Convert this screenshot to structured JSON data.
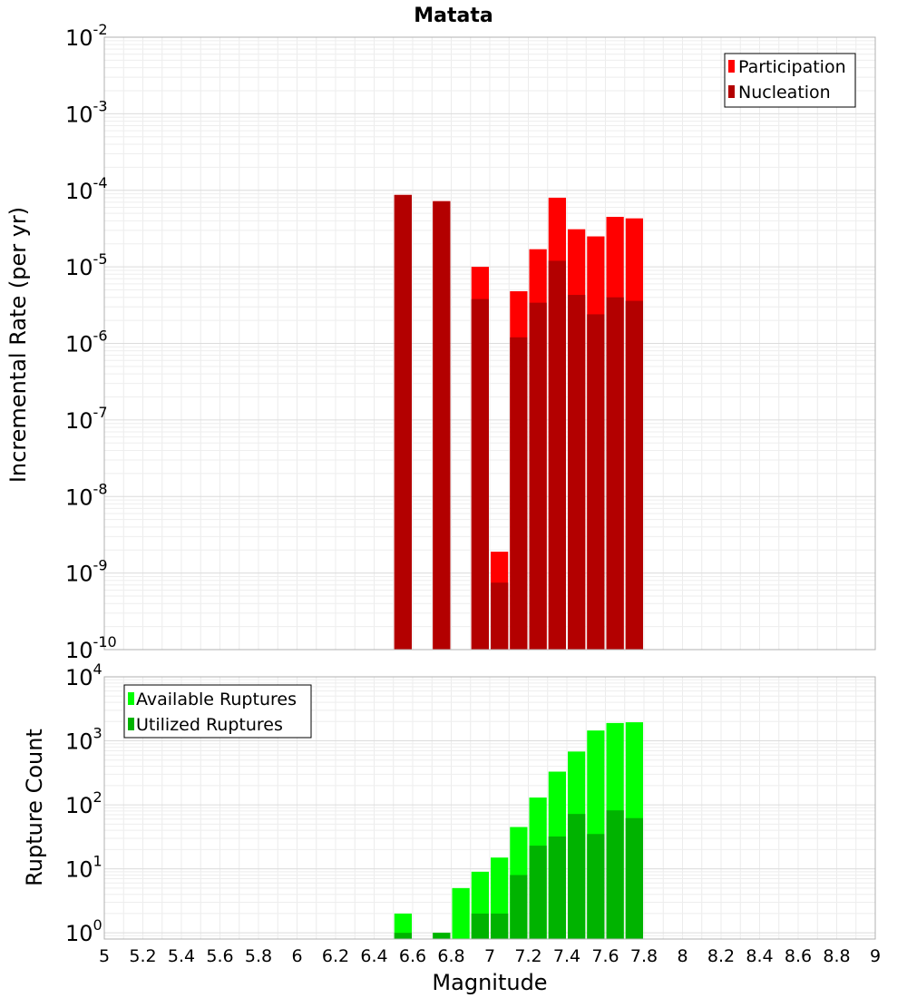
{
  "chart_data": [
    {
      "type": "bar",
      "title": "Matata",
      "xlabel": "",
      "ylabel": "Incremental Rate (per yr)",
      "y_scale": "log",
      "ylim": [
        1e-10,
        0.01
      ],
      "y_tick_exponents": [
        "-10",
        "-9",
        "-8",
        "-7",
        "-6",
        "-5",
        "-4",
        "-3",
        "-2"
      ],
      "xlim": [
        5,
        9
      ],
      "grid": true,
      "legend_position": "top-right",
      "bin_width": 0.1,
      "series": [
        {
          "name": "Participation",
          "color": "#ff0000",
          "x": [
            6.55,
            6.75,
            6.95,
            7.05,
            7.15,
            7.25,
            7.35,
            7.45,
            7.55,
            7.65,
            7.75
          ],
          "values": [
            8.7e-05,
            7.2e-05,
            1e-05,
            1.9e-09,
            4.8e-06,
            1.7e-05,
            8e-05,
            3.1e-05,
            2.5e-05,
            4.5e-05,
            4.3e-05
          ]
        },
        {
          "name": "Nucleation",
          "color": "#b30000",
          "x": [
            6.55,
            6.75,
            6.95,
            7.05,
            7.15,
            7.25,
            7.35,
            7.45,
            7.55,
            7.65,
            7.75
          ],
          "values": [
            8.7e-05,
            7.2e-05,
            3.8e-06,
            7.5e-10,
            1.2e-06,
            3.4e-06,
            1.2e-05,
            4.3e-06,
            2.4e-06,
            4e-06,
            3.6e-06
          ]
        }
      ]
    },
    {
      "type": "bar",
      "title": "",
      "xlabel": "Magnitude",
      "ylabel": "Rupture Count",
      "y_scale": "log",
      "ylim": [
        0.8,
        10000
      ],
      "y_tick_exponents": [
        "0",
        "1",
        "2",
        "3",
        "4"
      ],
      "xlim": [
        5,
        9
      ],
      "x_tick_labels": [
        "5",
        "5.2",
        "5.4",
        "5.6",
        "5.8",
        "6",
        "6.2",
        "6.4",
        "6.6",
        "6.8",
        "7",
        "7.2",
        "7.4",
        "7.6",
        "7.8",
        "8",
        "8.2",
        "8.4",
        "8.6",
        "8.8",
        "9"
      ],
      "grid": true,
      "legend_position": "top-left",
      "bin_width": 0.1,
      "series": [
        {
          "name": "Available Ruptures",
          "color": "#00ff00",
          "x": [
            6.55,
            6.75,
            6.85,
            6.95,
            7.05,
            7.15,
            7.25,
            7.35,
            7.45,
            7.55,
            7.65,
            7.75
          ],
          "values": [
            2,
            1,
            5,
            9,
            15,
            45,
            130,
            330,
            680,
            1450,
            1900,
            1950
          ]
        },
        {
          "name": "Utilized Ruptures",
          "color": "#00b300",
          "x": [
            6.55,
            6.75,
            6.85,
            6.95,
            7.05,
            7.15,
            7.25,
            7.35,
            7.45,
            7.55,
            7.65,
            7.75
          ],
          "values": [
            1,
            1,
            0,
            2,
            2,
            8,
            23,
            32,
            72,
            35,
            82,
            62
          ]
        }
      ]
    }
  ]
}
